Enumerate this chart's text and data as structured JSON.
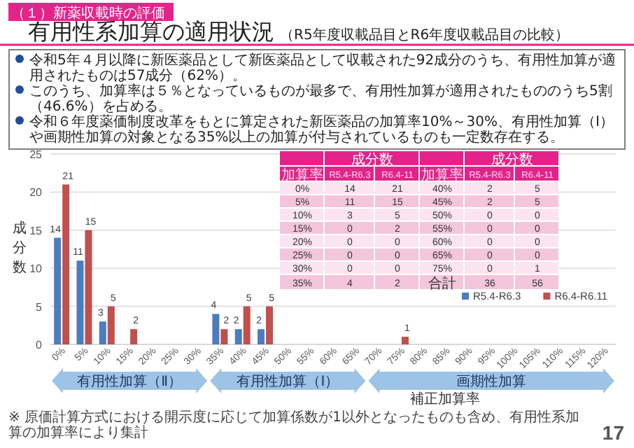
{
  "chart_data": {
    "type": "bar",
    "title": "有用性系加算の適用状況",
    "subtitle": "（R5年度収載品目とR6年度収載品目の比較）",
    "xlabel": "補正加算率",
    "ylabel": "成分数",
    "categories": [
      "0%",
      "5%",
      "10%",
      "15%",
      "20%",
      "25%",
      "30%",
      "35%",
      "40%",
      "45%",
      "50%",
      "55%",
      "60%",
      "65%",
      "70%",
      "75%",
      "80%",
      "85%",
      "90%",
      "95%",
      "100%",
      "105%",
      "110%",
      "115%",
      "120%"
    ],
    "series": [
      {
        "name": "R5.4-R6.3",
        "color": "#4a7dc0",
        "values": [
          14,
          11,
          3,
          0,
          0,
          0,
          0,
          4,
          2,
          2,
          0,
          0,
          0,
          0,
          0,
          0,
          0,
          0,
          0,
          0,
          0,
          0,
          0,
          0,
          0
        ],
        "value_labels": [
          "14",
          "11",
          "3",
          null,
          null,
          null,
          null,
          "4",
          "2",
          "2",
          null,
          null,
          null,
          null,
          null,
          null,
          null,
          null,
          null,
          null,
          null,
          null,
          null,
          null,
          null
        ]
      },
      {
        "name": "R6.4-R6.11",
        "color": "#c0504d",
        "values": [
          21,
          15,
          5,
          2,
          0,
          0,
          0,
          2,
          5,
          5,
          0,
          0,
          0,
          0,
          0,
          1,
          0,
          0,
          0,
          0,
          0,
          0,
          0,
          0,
          0
        ],
        "value_labels": [
          "21",
          "15",
          "5",
          "2",
          null,
          null,
          null,
          "2",
          "5",
          "5",
          null,
          null,
          null,
          null,
          null,
          "1",
          null,
          null,
          null,
          null,
          null,
          null,
          null,
          null,
          null
        ]
      }
    ],
    "ylim": [
      0,
      25
    ],
    "yticks": [
      0,
      5,
      10,
      15,
      20,
      25
    ],
    "grid": "y",
    "legend": "right",
    "annotations": [
      "（１）新薬収載時の評価",
      "令和5年４月以降に新医薬品として新医薬品として収載された92成分のうち、有用性加算が適用されたものは57成分（62%）。",
      "このうち、加算率は５％となっているものが最多で、有用性加算が適用されたもののうち5割（46.6%）を占める。",
      "令和６年度薬価制度改革をもとに算定された新医薬品の加算率10%～30%、有用性加算（Ⅰ）や画期性加算の対象となる35%以上の加算が付与されているものも一定数存在する。",
      "成分数",
      "加算率",
      "R5.4-R6.3",
      "R6.4-11",
      "合計",
      "36",
      "56",
      "有用性加算（Ⅱ）",
      "有用性加算（Ⅰ）",
      "画期性加算",
      "※ 原価計算方式における開示度に応じて加算係数が1以外となったものも含め、有用性系加算の加算率により集計",
      "17",
      "14",
      "21",
      "2",
      "5",
      "11",
      "15",
      "2",
      "5",
      "3",
      "5",
      "0",
      "0",
      "0",
      "2",
      "0",
      "0",
      "0",
      "0",
      "0",
      "0",
      "0",
      "0",
      "0",
      "0",
      "0",
      "0",
      "0",
      "1",
      "4",
      "2"
    ]
  }
}
